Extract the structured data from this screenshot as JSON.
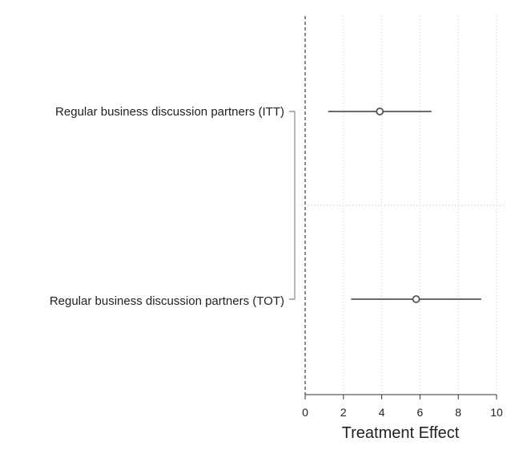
{
  "chart_data": {
    "type": "coefficient-plot",
    "orientation": "horizontal",
    "xlabel": "Treatment Effect",
    "xlim": [
      0,
      10
    ],
    "xticks": [
      0,
      2,
      4,
      6,
      8,
      10
    ],
    "reference_line_x": 0,
    "grid": "vertical-dotted",
    "series": [
      {
        "label": "Regular business discussion partners (ITT)",
        "estimate": 3.9,
        "ci_low": 1.2,
        "ci_high": 6.6
      },
      {
        "label": "Regular business discussion partners (TOT)",
        "estimate": 5.8,
        "ci_low": 2.4,
        "ci_high": 9.2
      }
    ],
    "colors": {
      "marker": "#555555",
      "ci": "#555555",
      "grid": "#cccccc",
      "bracket": "#999999"
    }
  }
}
